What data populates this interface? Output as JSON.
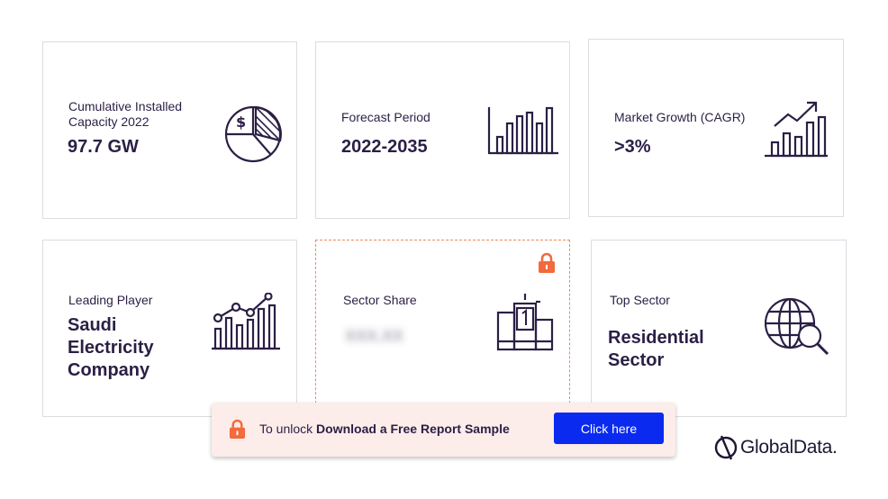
{
  "cards": [
    {
      "label": "Cumulative Installed Capacity 2022",
      "value": "97.7 GW",
      "icon": "pie-chart-dollar-icon"
    },
    {
      "label": "Forecast Period",
      "value": "2022-2035",
      "icon": "bar-chart-icon"
    },
    {
      "label": "Market Growth (CAGR)",
      "value": ">3%",
      "icon": "growth-chart-icon"
    },
    {
      "label": "Leading Player",
      "value_lines": [
        "Saudi",
        "Electricity",
        "Company"
      ],
      "icon": "line-bar-chart-icon"
    },
    {
      "label": "Sector Share",
      "value": "XXX.XX",
      "icon": "podium-icon",
      "locked": true
    },
    {
      "label": "Top Sector",
      "value_lines": [
        "Residential",
        "Sector"
      ],
      "icon": "globe-search-icon"
    }
  ],
  "banner": {
    "prefix": "To unlock ",
    "bold": "Download a Free Report Sample",
    "button_label": "Click here"
  },
  "brand": {
    "name": "GlobalData.",
    "accent_color": "#0a2af0",
    "lock_color": "#f26a3d",
    "text_color": "#2b1f45"
  }
}
